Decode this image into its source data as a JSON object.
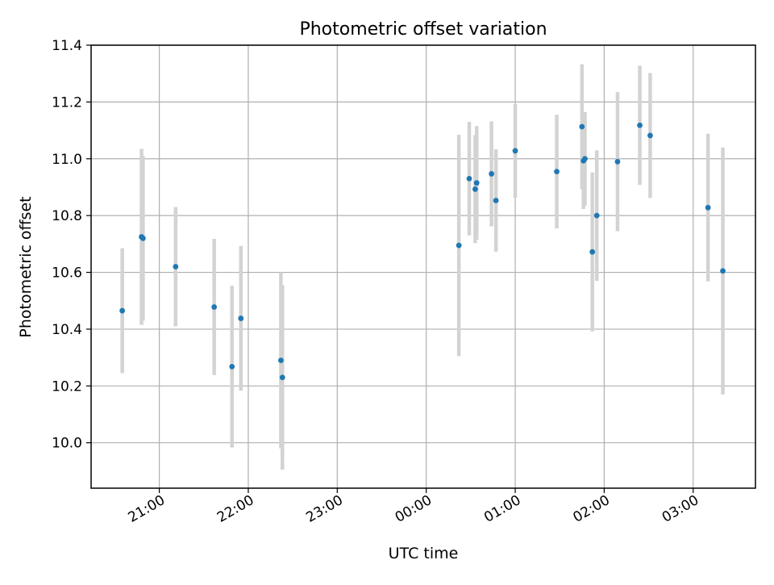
{
  "chart_data": {
    "type": "scatter",
    "title": "Photometric offset variation",
    "xlabel": "UTC time",
    "ylabel": "Photometric offset",
    "x_axis_type": "time",
    "xlim": [
      "20:14",
      "03:42"
    ],
    "ylim": [
      9.84,
      11.4
    ],
    "xticks": [
      "21:00",
      "22:00",
      "23:00",
      "00:00",
      "01:00",
      "02:00",
      "03:00"
    ],
    "yticks": [
      "10.0",
      "10.2",
      "10.4",
      "10.6",
      "10.8",
      "11.0",
      "11.2",
      "11.4"
    ],
    "grid": true,
    "legend": "none",
    "colors": {
      "point": "#1f77b4",
      "errorbar": "#d3d3d3",
      "grid": "#b0b0b0"
    },
    "points": [
      {
        "x": "20:35",
        "y": 10.465,
        "err": 0.22
      },
      {
        "x": "20:48",
        "y": 10.725,
        "err": 0.31
      },
      {
        "x": "20:49",
        "y": 10.72,
        "err": 0.29
      },
      {
        "x": "21:11",
        "y": 10.62,
        "err": 0.21
      },
      {
        "x": "21:37",
        "y": 10.478,
        "err": 0.24
      },
      {
        "x": "21:49",
        "y": 10.268,
        "err": 0.285
      },
      {
        "x": "21:55",
        "y": 10.438,
        "err": 0.255
      },
      {
        "x": "22:22",
        "y": 10.29,
        "err": 0.31
      },
      {
        "x": "22:23",
        "y": 10.23,
        "err": 0.325
      },
      {
        "x": "00:22",
        "y": 10.695,
        "err": 0.39
      },
      {
        "x": "00:29",
        "y": 10.93,
        "err": 0.2
      },
      {
        "x": "00:33",
        "y": 10.893,
        "err": 0.19
      },
      {
        "x": "00:34",
        "y": 10.915,
        "err": 0.2
      },
      {
        "x": "00:44",
        "y": 10.947,
        "err": 0.185
      },
      {
        "x": "00:47",
        "y": 10.853,
        "err": 0.18
      },
      {
        "x": "01:00",
        "y": 11.028,
        "err": 0.165
      },
      {
        "x": "01:28",
        "y": 10.955,
        "err": 0.2
      },
      {
        "x": "01:45",
        "y": 11.113,
        "err": 0.22
      },
      {
        "x": "01:46",
        "y": 10.993,
        "err": 0.17
      },
      {
        "x": "01:47",
        "y": 11.0,
        "err": 0.165
      },
      {
        "x": "01:52",
        "y": 10.672,
        "err": 0.28
      },
      {
        "x": "01:55",
        "y": 10.8,
        "err": 0.23
      },
      {
        "x": "02:09",
        "y": 10.99,
        "err": 0.245
      },
      {
        "x": "02:24",
        "y": 11.118,
        "err": 0.21
      },
      {
        "x": "02:31",
        "y": 11.082,
        "err": 0.22
      },
      {
        "x": "03:10",
        "y": 10.828,
        "err": 0.26
      },
      {
        "x": "03:20",
        "y": 10.605,
        "err": 0.435
      }
    ]
  }
}
